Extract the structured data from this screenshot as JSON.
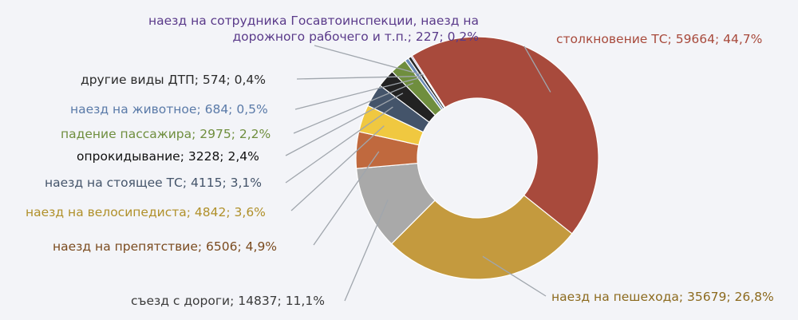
{
  "chart_data": {
    "type": "pie",
    "variant": "donut",
    "title": "",
    "legend": "none",
    "slices": [
      {
        "label": "столкновение ТС",
        "value": 59664,
        "percent": "44,7%",
        "text": "столкновение ТС; 59664; 44,7%",
        "color": "#a84a3c",
        "label_color": "#a84a3c"
      },
      {
        "label": "наезд на пешехода",
        "value": 35679,
        "percent": "26,8%",
        "text": "наезд на пешехода; 35679; 26,8%",
        "color": "#c49a3e",
        "label_color": "#8c6a1e"
      },
      {
        "label": "съезд с дороги",
        "value": 14837,
        "percent": "11,1%",
        "text": "съезд с дороги; 14837; 11,1%",
        "color": "#a9a9a9",
        "label_color": "#3a3a3a"
      },
      {
        "label": "наезд на препятствие",
        "value": 6506,
        "percent": "4,9%",
        "text": "наезд на препятствие; 6506; 4,9%",
        "color": "#c0693e",
        "label_color": "#7a4a1e"
      },
      {
        "label": "наезд на велосипедиста",
        "value": 4842,
        "percent": "3,6%",
        "text": "наезд на велосипедиста; 4842; 3,6%",
        "color": "#f0c840",
        "label_color": "#b0902a"
      },
      {
        "label": "наезд на стоящее ТС",
        "value": 4115,
        "percent": "3,1%",
        "text": "наезд на стоящее ТС; 4115; 3,1%",
        "color": "#44546a",
        "label_color": "#44546a"
      },
      {
        "label": "опрокидывание",
        "value": 3228,
        "percent": "2,4%",
        "text": "опрокидывание; 3228; 2,4%",
        "color": "#222222",
        "label_color": "#111111"
      },
      {
        "label": "падение пассажира",
        "value": 2975,
        "percent": "2,2%",
        "text": "падение пассажира; 2975; 2,2%",
        "color": "#6f8e3e",
        "label_color": "#6f8e3e"
      },
      {
        "label": "наезд на животное",
        "value": 684,
        "percent": "0,5%",
        "text": "наезд на животное; 684; 0,5%",
        "color": "#6a8ab4",
        "label_color": "#5a7aa8"
      },
      {
        "label": "другие виды ДТП",
        "value": 574,
        "percent": "0,4%",
        "text": "другие виды ДТП; 574; 0,4%",
        "color": "#2a2a2a",
        "label_color": "#2a2a2a"
      },
      {
        "label": "наезд на сотрудника Госавтоинспекции, наезд на дорожного рабочего и т.п.",
        "value": 227,
        "percent": "0,2%",
        "text": "наезд на сотрудника Госавтоинспекции, наезд на дорожного рабочего и т.п.; 227; 0,2%",
        "color": "#7a5aa8",
        "label_color": "#5a3a8a"
      }
    ]
  }
}
